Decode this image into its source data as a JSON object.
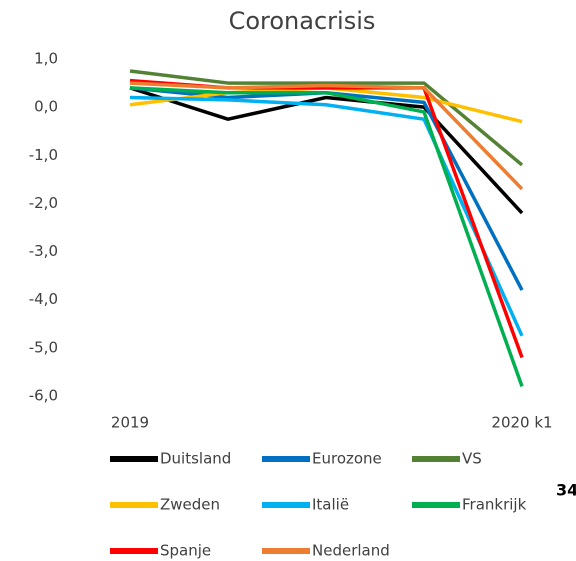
{
  "chart_data": {
    "type": "line",
    "title": "Coronacrisis",
    "categories": [
      "2019",
      null,
      null,
      null,
      "2020 k1"
    ],
    "series": [
      {
        "name": "Duitsland",
        "color": "#000000",
        "values": [
          0.4,
          -0.25,
          0.2,
          0.0,
          -2.2
        ]
      },
      {
        "name": "Eurozone",
        "color": "#0070c0",
        "values": [
          0.4,
          0.2,
          0.3,
          0.1,
          -3.8
        ]
      },
      {
        "name": "VS",
        "color": "#548235",
        "values": [
          0.75,
          0.5,
          0.5,
          0.5,
          -1.2
        ]
      },
      {
        "name": "Zweden",
        "color": "#ffc000",
        "values": [
          0.05,
          0.3,
          0.4,
          0.2,
          -0.3
        ]
      },
      {
        "name": "Italië",
        "color": "#00b0f0",
        "values": [
          0.2,
          0.15,
          0.05,
          -0.25,
          -4.75
        ]
      },
      {
        "name": "Frankrijk",
        "color": "#00b050",
        "values": [
          0.4,
          0.3,
          0.3,
          -0.1,
          -5.8
        ]
      },
      {
        "name": "Spanje",
        "color": "#ff0000",
        "values": [
          0.55,
          0.4,
          0.4,
          0.4,
          -5.2
        ]
      },
      {
        "name": "Nederland",
        "color": "#ed7d31",
        "values": [
          0.5,
          0.4,
          0.45,
          0.4,
          -1.7
        ]
      }
    ],
    "ylim": [
      -6,
      1
    ],
    "yticks": [
      {
        "value": 1,
        "label": "1,0"
      },
      {
        "value": 0,
        "label": "0,0"
      },
      {
        "value": -1,
        "label": "-1,0"
      },
      {
        "value": -2,
        "label": "-2,0"
      },
      {
        "value": -3,
        "label": "-3,0"
      },
      {
        "value": -4,
        "label": "-4,0"
      },
      {
        "value": -5,
        "label": "-5,0"
      },
      {
        "value": -6,
        "label": "-6,0"
      }
    ],
    "grid": false,
    "legend": "bottom",
    "annotations": [
      "34"
    ]
  }
}
